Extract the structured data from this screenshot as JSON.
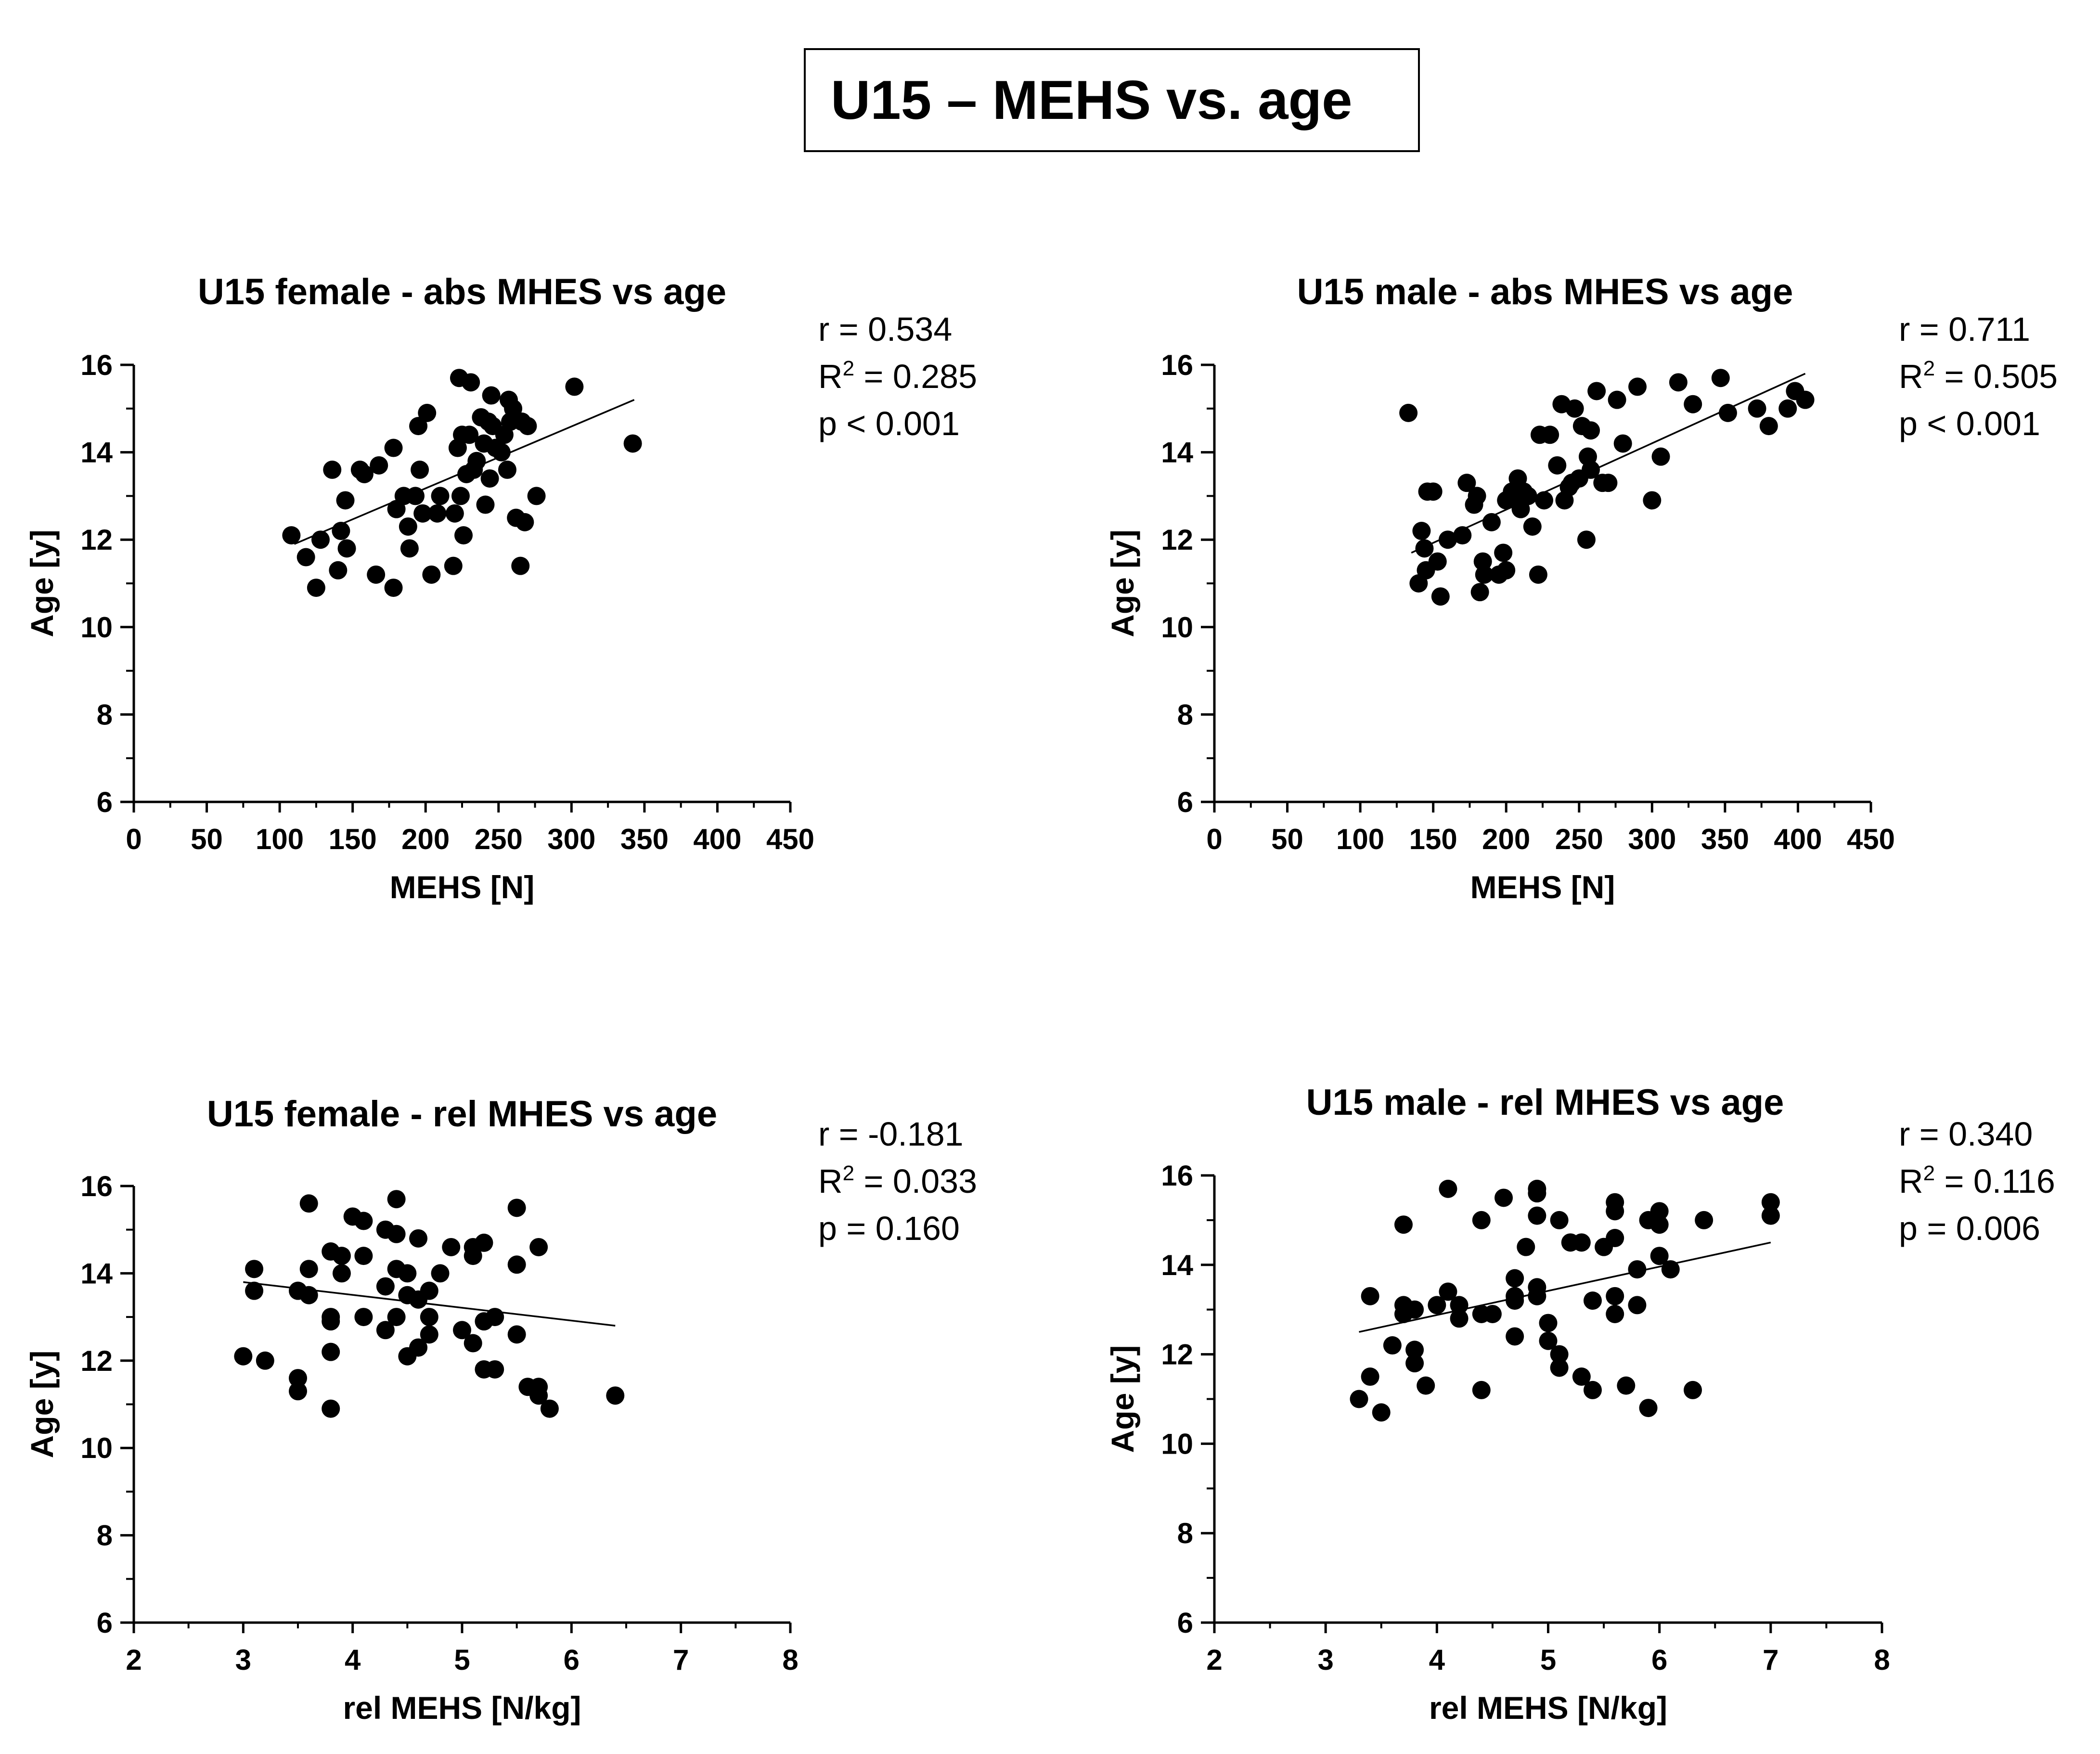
{
  "main_title": "U15 – MEHS vs. age",
  "colors": {
    "ink": "#000000",
    "background": "#ffffff"
  },
  "chart_data": [
    {
      "type": "scatter",
      "title": "U15 female - abs MHES vs age",
      "xlabel": "MEHS [N]",
      "ylabel": "Age [y]",
      "xlim": [
        0,
        450
      ],
      "ylim": [
        6,
        16
      ],
      "xticks": [
        "0",
        "50",
        "100",
        "150",
        "200",
        "250",
        "300",
        "350",
        "400",
        "450"
      ],
      "yticks": [
        "6",
        "8",
        "10",
        "12",
        "14",
        "16"
      ],
      "stats": {
        "r": "r = 0.534",
        "r2_prefix": "R",
        "r2_sup": "2",
        "r2_value": " = 0.285",
        "p": "p < 0.001"
      },
      "regression": {
        "x": [
          110,
          343
        ],
        "y": [
          11.9,
          15.2
        ]
      },
      "points": [
        [
          108,
          12.1
        ],
        [
          118,
          11.6
        ],
        [
          125,
          10.9
        ],
        [
          128,
          12.0
        ],
        [
          136,
          13.6
        ],
        [
          140,
          11.3
        ],
        [
          142,
          12.2
        ],
        [
          145,
          12.9
        ],
        [
          146,
          11.8
        ],
        [
          155,
          13.6
        ],
        [
          158,
          13.5
        ],
        [
          166,
          11.2
        ],
        [
          168,
          13.7
        ],
        [
          178,
          14.1
        ],
        [
          178,
          10.9
        ],
        [
          180,
          12.7
        ],
        [
          185,
          13.0
        ],
        [
          188,
          12.3
        ],
        [
          189,
          11.8
        ],
        [
          193,
          13.0
        ],
        [
          195,
          14.6
        ],
        [
          196,
          13.6
        ],
        [
          198,
          12.6
        ],
        [
          201,
          14.9
        ],
        [
          204,
          11.2
        ],
        [
          208,
          12.6
        ],
        [
          210,
          13.0
        ],
        [
          219,
          11.4
        ],
        [
          220,
          12.6
        ],
        [
          222,
          14.1
        ],
        [
          223,
          15.7
        ],
        [
          224,
          13.0
        ],
        [
          225,
          14.4
        ],
        [
          226,
          12.1
        ],
        [
          228,
          13.5
        ],
        [
          230,
          14.4
        ],
        [
          231,
          15.6
        ],
        [
          233,
          13.6
        ],
        [
          235,
          13.8
        ],
        [
          238,
          14.8
        ],
        [
          240,
          14.2
        ],
        [
          241,
          12.8
        ],
        [
          243,
          14.7
        ],
        [
          244,
          13.4
        ],
        [
          245,
          15.3
        ],
        [
          246,
          14.6
        ],
        [
          248,
          14.1
        ],
        [
          252,
          14.0
        ],
        [
          254,
          14.4
        ],
        [
          256,
          13.6
        ],
        [
          257,
          15.2
        ],
        [
          258,
          14.7
        ],
        [
          260,
          15.0
        ],
        [
          262,
          12.5
        ],
        [
          265,
          11.4
        ],
        [
          266,
          14.7
        ],
        [
          268,
          12.4
        ],
        [
          270,
          14.6
        ],
        [
          276,
          13.0
        ],
        [
          302,
          15.5
        ],
        [
          342,
          14.2
        ]
      ]
    },
    {
      "type": "scatter",
      "title": "U15 male - abs MHES vs age",
      "xlabel": "MEHS [N]",
      "ylabel": "Age [y]",
      "xlim": [
        0,
        450
      ],
      "ylim": [
        6,
        16
      ],
      "xticks": [
        "0",
        "50",
        "100",
        "150",
        "200",
        "250",
        "300",
        "350",
        "400",
        "450"
      ],
      "yticks": [
        "6",
        "8",
        "10",
        "12",
        "14",
        "16"
      ],
      "stats": {
        "r": "r = 0.711",
        "r2_prefix": "R",
        "r2_sup": "2",
        "r2_value": " = 0.505",
        "p": "p < 0.001"
      },
      "regression": {
        "x": [
          135,
          405
        ],
        "y": [
          11.7,
          15.8
        ]
      },
      "points": [
        [
          133,
          14.9
        ],
        [
          140,
          11.0
        ],
        [
          142,
          12.2
        ],
        [
          144,
          11.8
        ],
        [
          145,
          11.3
        ],
        [
          146,
          13.1
        ],
        [
          150,
          13.1
        ],
        [
          153,
          11.5
        ],
        [
          155,
          10.7
        ],
        [
          160,
          12.0
        ],
        [
          170,
          12.1
        ],
        [
          173,
          13.3
        ],
        [
          178,
          12.8
        ],
        [
          180,
          13.0
        ],
        [
          182,
          10.8
        ],
        [
          184,
          11.5
        ],
        [
          185,
          11.2
        ],
        [
          190,
          12.4
        ],
        [
          195,
          11.2
        ],
        [
          198,
          11.7
        ],
        [
          200,
          11.3
        ],
        [
          200,
          12.9
        ],
        [
          204,
          13.1
        ],
        [
          206,
          13.0
        ],
        [
          208,
          13.4
        ],
        [
          210,
          12.7
        ],
        [
          212,
          13.1
        ],
        [
          215,
          13.0
        ],
        [
          218,
          12.3
        ],
        [
          222,
          11.2
        ],
        [
          223,
          14.4
        ],
        [
          226,
          12.9
        ],
        [
          230,
          14.4
        ],
        [
          235,
          13.7
        ],
        [
          238,
          15.1
        ],
        [
          240,
          12.9
        ],
        [
          243,
          13.2
        ],
        [
          245,
          13.3
        ],
        [
          247,
          15.0
        ],
        [
          250,
          13.4
        ],
        [
          252,
          14.6
        ],
        [
          255,
          12.0
        ],
        [
          256,
          13.9
        ],
        [
          258,
          14.5
        ],
        [
          258,
          13.6
        ],
        [
          262,
          15.4
        ],
        [
          266,
          13.3
        ],
        [
          270,
          13.3
        ],
        [
          276,
          15.2
        ],
        [
          280,
          14.2
        ],
        [
          290,
          15.5
        ],
        [
          300,
          12.9
        ],
        [
          306,
          13.9
        ],
        [
          318,
          15.6
        ],
        [
          328,
          15.1
        ],
        [
          347,
          15.7
        ],
        [
          352,
          14.9
        ],
        [
          372,
          15.0
        ],
        [
          380,
          14.6
        ],
        [
          393,
          15.0
        ],
        [
          398,
          15.4
        ],
        [
          405,
          15.2
        ]
      ]
    },
    {
      "type": "scatter",
      "title": "U15 female - rel MHES vs age",
      "xlabel": "rel MEHS [N/kg]",
      "ylabel": "Age [y]",
      "xlim": [
        2,
        8
      ],
      "ylim": [
        6,
        16
      ],
      "xticks": [
        "2",
        "3",
        "4",
        "5",
        "6",
        "7",
        "8"
      ],
      "yticks": [
        "6",
        "8",
        "10",
        "12",
        "14",
        "16"
      ],
      "stats": {
        "r": "r = -0.181",
        "r2_prefix": "R",
        "r2_sup": "2",
        "r2_value": " = 0.033",
        "p": "p = 0.160"
      },
      "regression": {
        "x": [
          3.0,
          6.4
        ],
        "y": [
          13.8,
          12.8
        ]
      },
      "points": [
        [
          3.0,
          12.1
        ],
        [
          3.1,
          14.1
        ],
        [
          3.1,
          13.6
        ],
        [
          3.2,
          12.0
        ],
        [
          3.5,
          13.6
        ],
        [
          3.5,
          11.6
        ],
        [
          3.5,
          11.3
        ],
        [
          3.6,
          15.6
        ],
        [
          3.6,
          14.1
        ],
        [
          3.6,
          13.5
        ],
        [
          3.8,
          14.5
        ],
        [
          3.8,
          13.0
        ],
        [
          3.8,
          12.9
        ],
        [
          3.8,
          12.2
        ],
        [
          3.8,
          10.9
        ],
        [
          3.9,
          14.4
        ],
        [
          3.9,
          14.0
        ],
        [
          4.0,
          15.3
        ],
        [
          4.1,
          15.2
        ],
        [
          4.1,
          14.4
        ],
        [
          4.1,
          13.0
        ],
        [
          4.3,
          15.0
        ],
        [
          4.3,
          13.7
        ],
        [
          4.3,
          12.7
        ],
        [
          4.4,
          15.7
        ],
        [
          4.4,
          14.9
        ],
        [
          4.4,
          14.1
        ],
        [
          4.4,
          13.0
        ],
        [
          4.5,
          14.0
        ],
        [
          4.5,
          13.5
        ],
        [
          4.5,
          12.1
        ],
        [
          4.6,
          14.8
        ],
        [
          4.6,
          13.4
        ],
        [
          4.6,
          12.3
        ],
        [
          4.7,
          13.6
        ],
        [
          4.7,
          13.0
        ],
        [
          4.7,
          12.6
        ],
        [
          4.8,
          14.0
        ],
        [
          4.9,
          14.6
        ],
        [
          5.0,
          12.7
        ],
        [
          5.1,
          14.6
        ],
        [
          5.1,
          14.4
        ],
        [
          5.1,
          12.4
        ],
        [
          5.2,
          14.7
        ],
        [
          5.2,
          12.9
        ],
        [
          5.2,
          11.8
        ],
        [
          5.3,
          13.0
        ],
        [
          5.3,
          11.8
        ],
        [
          5.5,
          15.5
        ],
        [
          5.5,
          14.2
        ],
        [
          5.5,
          12.6
        ],
        [
          5.6,
          11.4
        ],
        [
          5.7,
          14.6
        ],
        [
          5.7,
          11.4
        ],
        [
          5.7,
          11.2
        ],
        [
          5.8,
          10.9
        ],
        [
          6.4,
          11.2
        ]
      ]
    },
    {
      "type": "scatter",
      "title": "U15 male - rel MHES vs age",
      "xlabel": "rel MEHS [N/kg]",
      "ylabel": "Age [y]",
      "xlim": [
        2,
        8
      ],
      "ylim": [
        6,
        16
      ],
      "xticks": [
        "2",
        "3",
        "4",
        "5",
        "6",
        "7",
        "8"
      ],
      "yticks": [
        "6",
        "8",
        "10",
        "12",
        "14",
        "16"
      ],
      "stats": {
        "r": "r = 0.340",
        "r2_prefix": "R",
        "r2_sup": "2",
        "r2_value": " = 0.116",
        "p": "p = 0.006"
      },
      "regression": {
        "x": [
          3.3,
          7.0
        ],
        "y": [
          12.5,
          14.5
        ]
      },
      "points": [
        [
          3.3,
          11.0
        ],
        [
          3.4,
          13.3
        ],
        [
          3.4,
          11.5
        ],
        [
          3.5,
          10.7
        ],
        [
          3.6,
          12.2
        ],
        [
          3.7,
          14.9
        ],
        [
          3.7,
          13.1
        ],
        [
          3.7,
          12.9
        ],
        [
          3.8,
          13.0
        ],
        [
          3.8,
          12.1
        ],
        [
          3.8,
          11.8
        ],
        [
          3.9,
          11.3
        ],
        [
          4.0,
          13.1
        ],
        [
          4.1,
          15.7
        ],
        [
          4.1,
          13.4
        ],
        [
          4.2,
          13.1
        ],
        [
          4.2,
          12.8
        ],
        [
          4.4,
          15.0
        ],
        [
          4.4,
          12.9
        ],
        [
          4.4,
          11.2
        ],
        [
          4.5,
          12.9
        ],
        [
          4.6,
          15.5
        ],
        [
          4.7,
          13.7
        ],
        [
          4.7,
          13.3
        ],
        [
          4.7,
          13.2
        ],
        [
          4.7,
          12.4
        ],
        [
          4.8,
          14.4
        ],
        [
          4.9,
          15.7
        ],
        [
          4.9,
          15.6
        ],
        [
          4.9,
          15.1
        ],
        [
          4.9,
          13.5
        ],
        [
          4.9,
          13.3
        ],
        [
          5.0,
          12.7
        ],
        [
          5.0,
          12.3
        ],
        [
          5.1,
          15.0
        ],
        [
          5.1,
          12.0
        ],
        [
          5.1,
          11.7
        ],
        [
          5.2,
          14.5
        ],
        [
          5.3,
          14.5
        ],
        [
          5.3,
          11.5
        ],
        [
          5.4,
          13.2
        ],
        [
          5.4,
          11.2
        ],
        [
          5.5,
          14.4
        ],
        [
          5.6,
          15.4
        ],
        [
          5.6,
          15.2
        ],
        [
          5.6,
          14.6
        ],
        [
          5.6,
          13.3
        ],
        [
          5.6,
          12.9
        ],
        [
          5.7,
          11.3
        ],
        [
          5.8,
          13.9
        ],
        [
          5.8,
          13.1
        ],
        [
          5.9,
          15.0
        ],
        [
          5.9,
          10.8
        ],
        [
          6.0,
          15.2
        ],
        [
          6.0,
          14.9
        ],
        [
          6.0,
          14.2
        ],
        [
          6.1,
          13.9
        ],
        [
          6.3,
          11.2
        ],
        [
          6.4,
          15.0
        ],
        [
          7.0,
          15.4
        ],
        [
          7.0,
          15.1
        ]
      ]
    }
  ]
}
